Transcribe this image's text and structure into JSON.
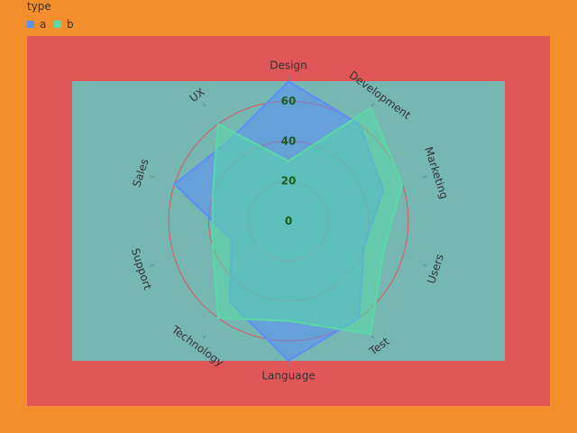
{
  "legend": {
    "title": "type",
    "items": [
      {
        "label": "a",
        "color": "#5b8ff9"
      },
      {
        "label": "b",
        "color": "#5ad8a6"
      }
    ]
  },
  "colors": {
    "page_background": "#f28e2b",
    "outer_panel": "#e15759",
    "inner_panel": "#76b7b2",
    "grid_circles": "#e15759",
    "radial_labels": "#1a5c1a",
    "series_a": "#5b8ff9",
    "series_b": "#5ad8a6"
  },
  "chart_data": {
    "type": "radar",
    "categories": [
      "Design",
      "Development",
      "Marketing",
      "Users",
      "Test",
      "Language",
      "Technology",
      "Support",
      "Sales",
      "UX"
    ],
    "radial_ticks": [
      0,
      20,
      40,
      60
    ],
    "radial_range": [
      0,
      70
    ],
    "grid": true,
    "legend_position": "top-left",
    "series": [
      {
        "name": "a",
        "values": [
          70,
          60,
          50,
          40,
          60,
          70,
          50,
          30,
          60,
          50
        ]
      },
      {
        "name": "b",
        "values": [
          30,
          70,
          60,
          50,
          70,
          50,
          60,
          40,
          40,
          60
        ]
      }
    ]
  }
}
